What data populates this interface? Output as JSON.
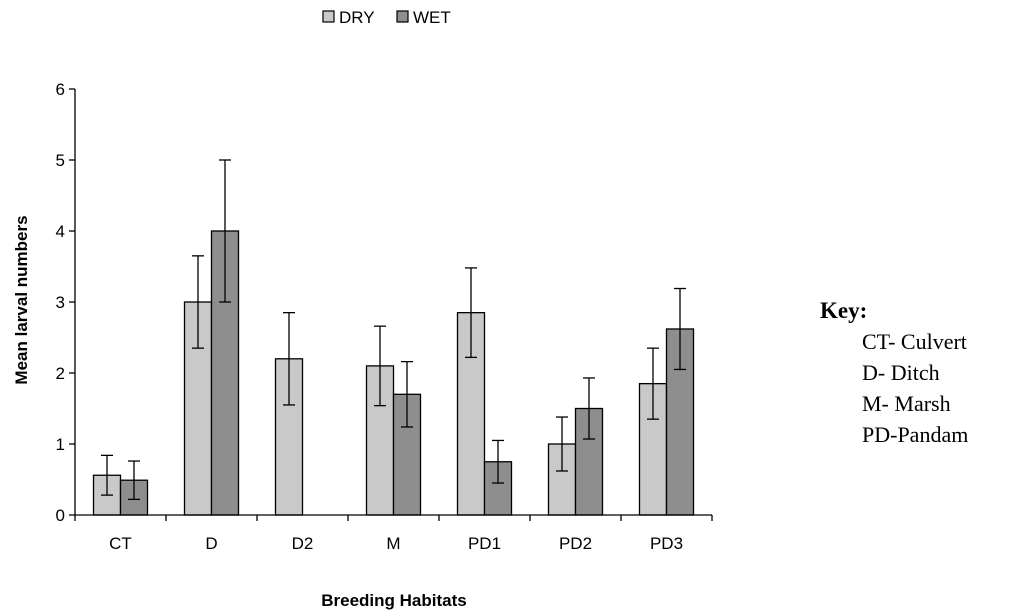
{
  "chart_data": {
    "type": "bar",
    "title": "",
    "xlabel": "Breeding Habitats",
    "ylabel": "Mean larval numbers",
    "ylim": [
      0,
      6
    ],
    "yticks": [
      "0",
      "1",
      "2",
      "3",
      "4",
      "5",
      "6"
    ],
    "categories": [
      "CT",
      "D",
      "D2",
      "M",
      "PD1",
      "PD2",
      "PD3"
    ],
    "series": [
      {
        "name": "DRY",
        "color": "#c9c9c9",
        "values": [
          0.56,
          3.0,
          2.2,
          2.1,
          2.85,
          1.0,
          1.85
        ],
        "error": [
          0.28,
          0.65,
          0.65,
          0.56,
          0.63,
          0.38,
          0.5
        ]
      },
      {
        "name": "WET",
        "color": "#8e8e8e",
        "values": [
          0.49,
          4.0,
          0.0,
          1.7,
          0.75,
          1.5,
          2.62
        ],
        "error": [
          0.27,
          1.0,
          0.0,
          0.46,
          0.3,
          0.43,
          0.57
        ]
      }
    ],
    "legend_position": "top-center",
    "grid": false
  },
  "key": {
    "title": "Key:",
    "items": [
      "CT- Culvert",
      "D- Ditch",
      "M- Marsh",
      "PD-Pandam"
    ]
  }
}
